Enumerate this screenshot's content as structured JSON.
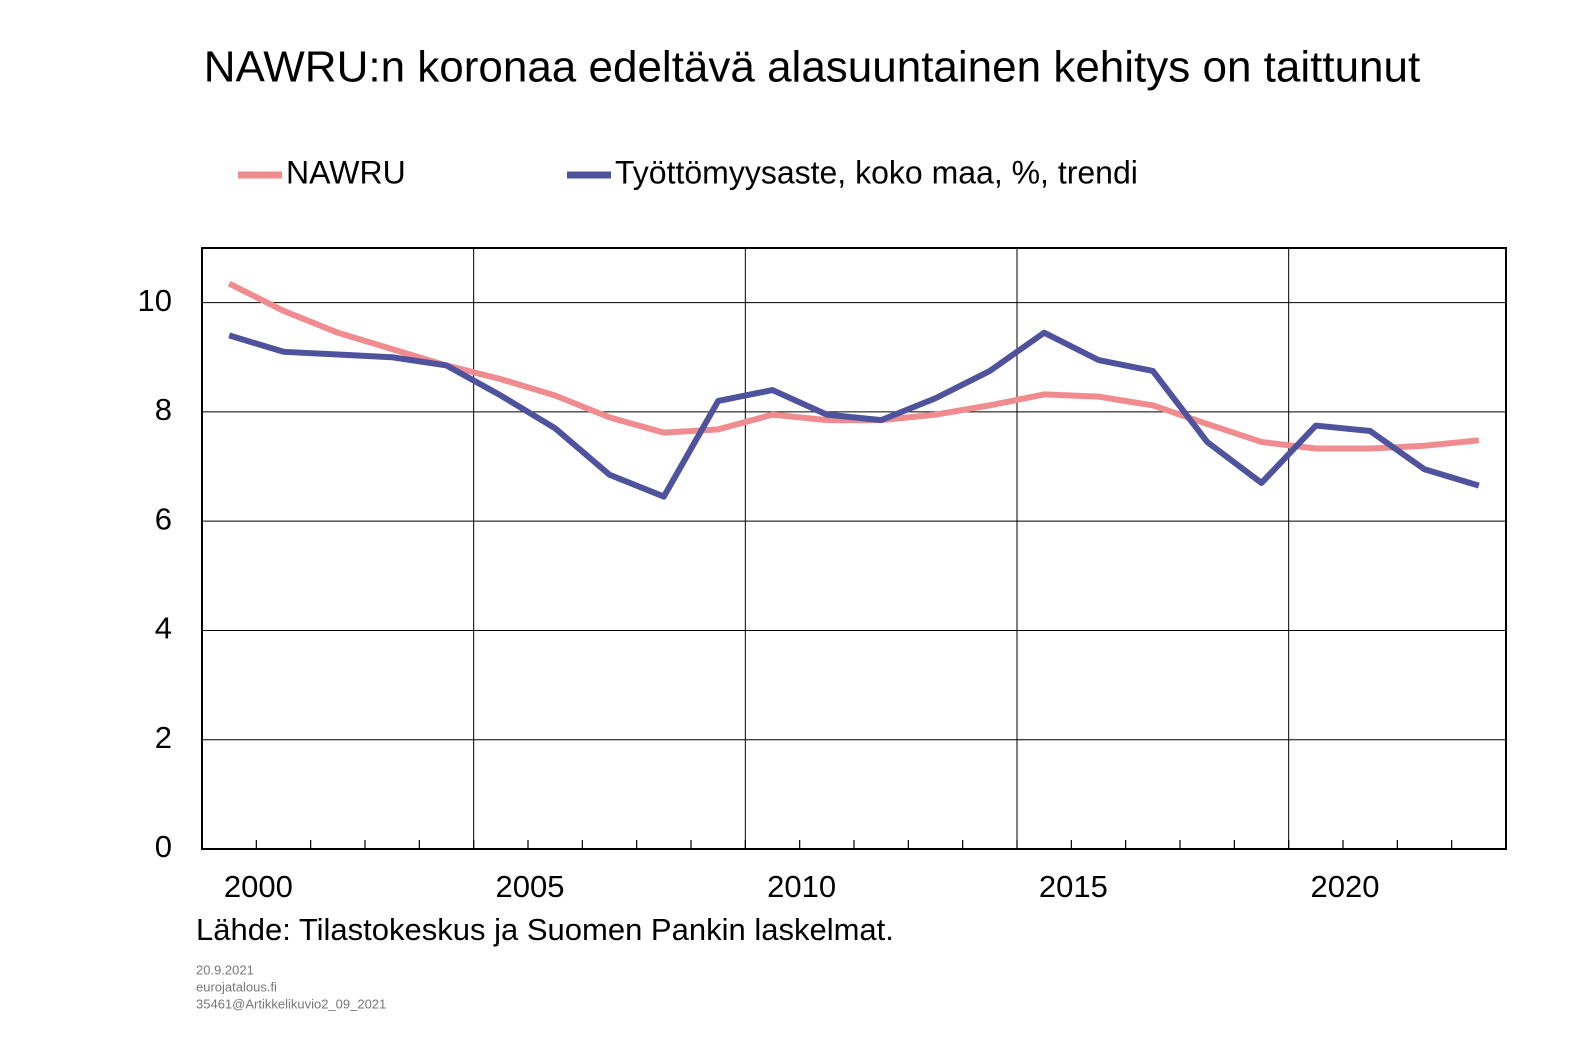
{
  "chart_data": {
    "type": "line",
    "title": "NAWRU:n koronaa edeltävä alasuuntainen kehitys on taittunut",
    "x": [
      1999.5,
      2000.5,
      2001.5,
      2002.5,
      2003.5,
      2004.5,
      2005.5,
      2006.5,
      2007.5,
      2008.5,
      2009.5,
      2010.5,
      2011.5,
      2012.5,
      2013.5,
      2014.5,
      2015.5,
      2016.5,
      2017.5,
      2018.5,
      2019.5,
      2020.5,
      2021.5,
      2022.5
    ],
    "series": [
      {
        "name": "NAWRU",
        "color": "#f08c8f",
        "values": [
          10.35,
          9.85,
          9.45,
          9.15,
          8.85,
          8.6,
          8.3,
          7.9,
          7.62,
          7.68,
          7.95,
          7.85,
          7.85,
          7.95,
          8.12,
          8.32,
          8.28,
          8.12,
          7.78,
          7.45,
          7.33,
          7.33,
          7.38,
          7.48
        ]
      },
      {
        "name": "Työttömyysaste, koko maa, %, trendi",
        "color": "#4f529c",
        "values": [
          9.4,
          9.1,
          9.05,
          9.0,
          8.85,
          8.3,
          7.7,
          6.85,
          6.45,
          8.2,
          8.4,
          7.95,
          7.85,
          8.25,
          8.75,
          9.45,
          8.95,
          8.75,
          7.45,
          6.7,
          7.75,
          7.65,
          6.95,
          6.65
        ]
      }
    ],
    "xlim": [
      1999,
      2023
    ],
    "xticks": [
      2000,
      2005,
      2010,
      2015,
      2020
    ],
    "xgrid": [
      2004,
      2009,
      2014,
      2019
    ],
    "xminorticks": [
      2000,
      2001,
      2002,
      2003,
      2004,
      2005,
      2006,
      2007,
      2008,
      2009,
      2010,
      2011,
      2012,
      2013,
      2014,
      2015,
      2016,
      2017,
      2018,
      2019,
      2020,
      2021,
      2022
    ],
    "ylim": [
      0,
      11
    ],
    "yticks": [
      0,
      2,
      4,
      6,
      8,
      10
    ],
    "grid": true,
    "source": "Lähde: Tilastokeskus ja Suomen Pankin laskelmat.",
    "footer": [
      "20.9.2021",
      "eurojatalous.fi",
      "35461@Artikkelikuvio2_09_2021"
    ]
  }
}
